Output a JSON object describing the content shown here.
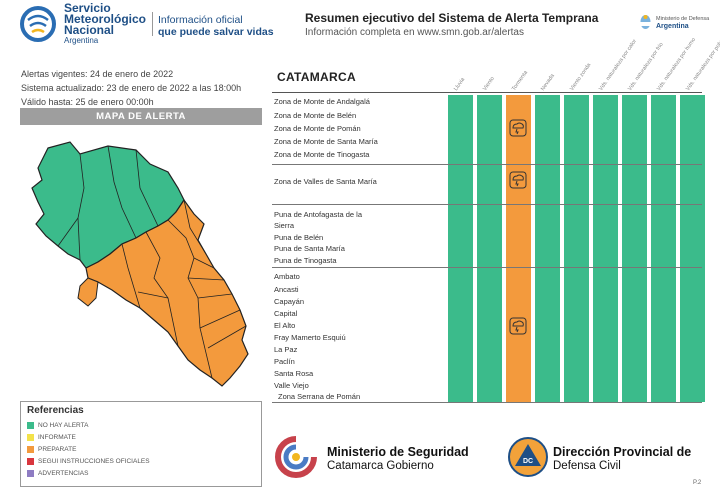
{
  "header": {
    "brand_line1": "Servicio",
    "brand_line2": "Meteorológico",
    "brand_line3": "Nacional",
    "brand_country": "Argentina",
    "slogan_line1": "Información oficial",
    "slogan_line2": "que puede salvar vidas",
    "title": "Resumen ejecutivo del Sistema de Alerta Temprana",
    "subtitle": "Información completa en www.smn.gob.ar/alertas",
    "gov_line1": "Ministerio de Defensa",
    "gov_line2": "Argentina"
  },
  "info": {
    "alerts": "Alertas vigentes: 24 de enero de 2022",
    "updated": "Sistema actualizado: 23 de enero de 2022 a las 18:00h",
    "valid": "Válido hasta: 25 de enero 00:00h"
  },
  "map": {
    "title": "MAPA DE ALERTA"
  },
  "references": {
    "title": "Referencias",
    "items": [
      {
        "label": "NO HAY ALERTA",
        "color": "#3bbb8b"
      },
      {
        "label": "INFORMATE",
        "color": "#f3e24a"
      },
      {
        "label": "PREPARATE",
        "color": "#f39a3d"
      },
      {
        "label": "SEGUI INSTRUCCIONES OFICIALES",
        "color": "#d9363e"
      },
      {
        "label": "ADVERTENCIAS",
        "color": "#8e7cc3"
      }
    ]
  },
  "table": {
    "province": "CATAMARCA",
    "columns": [
      "Lluvia",
      "Viento",
      "Tormenta",
      "Nevada",
      "Viento zonda",
      "Vds. naturaleza por calor",
      "Vds. naturaleza por frío",
      "Vds. naturaleza por humo",
      "Vds. naturaleza por polvo",
      "Vds. naturaleza por ceniza"
    ],
    "groups": [
      [
        "Zona de Monte de Andalgalá",
        "Zona de Monte de Belén",
        "Zona de Monte de Pomán",
        "Zona de Monte de Santa María",
        "Zona de Monte de Tinogasta"
      ],
      [
        "Zona de Valles de Santa María"
      ],
      [
        "Puna de Antofagasta de la",
        "Sierra",
        "Puna de Belén",
        "Puna de Santa María",
        "Puna de Tinogasta"
      ],
      [
        "Ambato",
        "Ancasti",
        "Capayán",
        "Capital",
        "El Alto",
        "Fray Mamerto Esquiú",
        "La Paz",
        "Paclín",
        "Santa Rosa",
        "Valle Viejo",
        "Zona Serrana de Pomán"
      ]
    ],
    "storm_column_status": "PREPARATE"
  },
  "footer": {
    "ministry_line1": "Ministerio de Seguridad",
    "ministry_line2": "Catamarca Gobierno",
    "dc_line1": "Dirección Provincial de",
    "dc_line2": "Defensa Civil",
    "page": "P.2"
  }
}
